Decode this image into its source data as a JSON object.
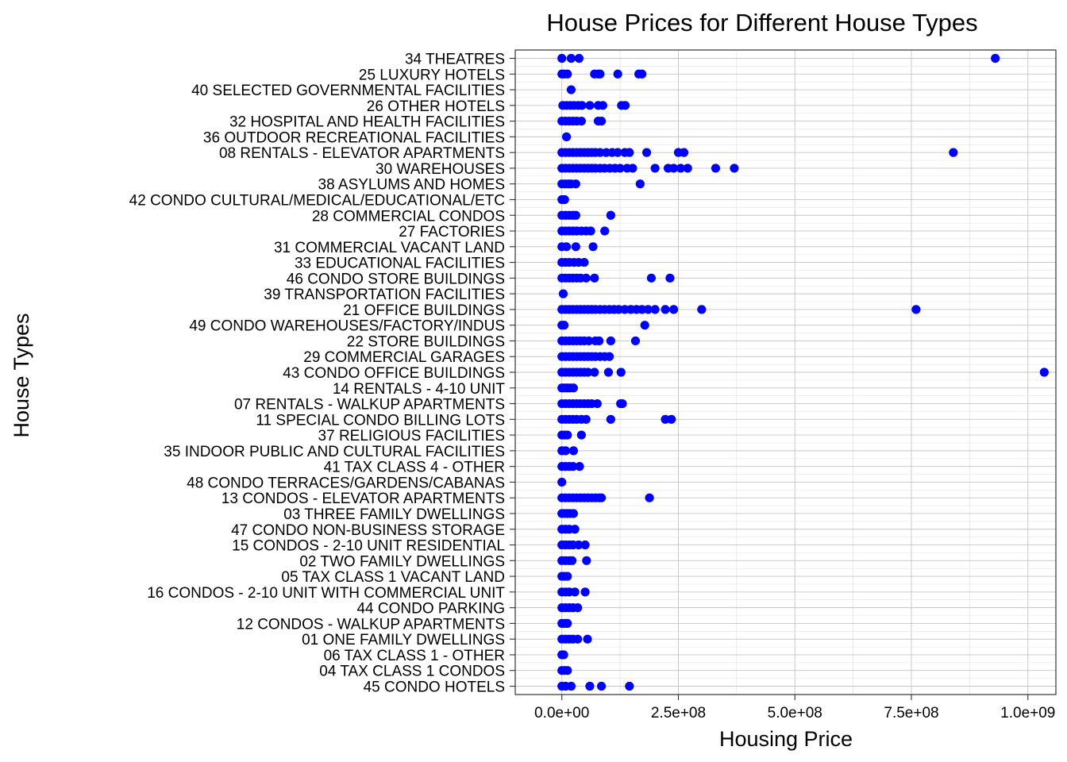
{
  "chart_data": {
    "type": "scatter",
    "title": "House Prices for Different House Types",
    "xlabel": "Housing Price",
    "ylabel": "House Types",
    "xlim": [
      -100000000,
      1060000000
    ],
    "xticks": [
      0,
      250000000,
      500000000,
      750000000,
      1000000000
    ],
    "xtick_labels": [
      "0.0e+00",
      "2.5e+08",
      "5.0e+08",
      "7.5e+08",
      "1.0e+09"
    ],
    "grid": true,
    "point_color": "#0000ff",
    "categories": [
      "34 THEATRES",
      "25 LUXURY HOTELS",
      "40 SELECTED GOVERNMENTAL FACILITIES",
      "26 OTHER HOTELS",
      "32 HOSPITAL AND HEALTH FACILITIES",
      "36 OUTDOOR RECREATIONAL FACILITIES",
      "08 RENTALS - ELEVATOR APARTMENTS",
      "30 WAREHOUSES",
      "38 ASYLUMS AND HOMES",
      "42 CONDO CULTURAL/MEDICAL/EDUCATIONAL/ETC",
      "28 COMMERCIAL CONDOS",
      "27 FACTORIES",
      "31 COMMERCIAL VACANT LAND",
      "33 EDUCATIONAL FACILITIES",
      "46 CONDO STORE BUILDINGS",
      "39 TRANSPORTATION FACILITIES",
      "21 OFFICE BUILDINGS",
      "49 CONDO WAREHOUSES/FACTORY/INDUS",
      "22 STORE BUILDINGS",
      "29 COMMERCIAL GARAGES",
      "43 CONDO OFFICE BUILDINGS",
      "14 RENTALS - 4-10 UNIT",
      "07 RENTALS - WALKUP APARTMENTS",
      "11 SPECIAL CONDO BILLING LOTS",
      "37 RELIGIOUS FACILITIES",
      "35 INDOOR PUBLIC AND CULTURAL FACILITIES",
      "41 TAX CLASS 4 - OTHER",
      "48 CONDO TERRACES/GARDENS/CABANAS",
      "13 CONDOS - ELEVATOR APARTMENTS",
      "03 THREE FAMILY DWELLINGS",
      "47 CONDO NON-BUSINESS STORAGE",
      "15 CONDOS - 2-10 UNIT RESIDENTIAL",
      "02 TWO FAMILY DWELLINGS",
      "05 TAX CLASS 1 VACANT LAND",
      "16 CONDOS - 2-10 UNIT WITH COMMERCIAL UNIT",
      "44 CONDO PARKING",
      "12 CONDOS - WALKUP APARTMENTS",
      "01 ONE FAMILY DWELLINGS",
      "06 TAX CLASS 1 - OTHER",
      "04 TAX CLASS 1 CONDOS",
      "45 CONDO HOTELS"
    ],
    "series": [
      {
        "values": [
          {
            "cat": "34 THEATRES",
            "x": [
              0,
              20000000,
              37000000,
              930000000
            ]
          },
          {
            "cat": "25 LUXURY HOTELS",
            "x": [
              0,
              5000000,
              12000000,
              70000000,
              78000000,
              82000000,
              120000000,
              165000000,
              172000000
            ]
          },
          {
            "cat": "40 SELECTED GOVERNMENTAL FACILITIES",
            "x": [
              20000000
            ]
          },
          {
            "cat": "26 OTHER HOTELS",
            "x": [
              2000000,
              10000000,
              18000000,
              26000000,
              35000000,
              43000000,
              60000000,
              78000000,
              88000000,
              128000000,
              136000000
            ]
          },
          {
            "cat": "32 HOSPITAL AND HEALTH FACILITIES",
            "x": [
              0,
              8000000,
              16000000,
              24000000,
              32000000,
              42000000,
              78000000,
              85000000
            ]
          },
          {
            "cat": "36 OUTDOOR RECREATIONAL FACILITIES",
            "x": [
              10000000
            ]
          },
          {
            "cat": "08 RENTALS - ELEVATOR APARTMENTS",
            "x": [
              0,
              8000000,
              16000000,
              24000000,
              32000000,
              40000000,
              48000000,
              56000000,
              64000000,
              72000000,
              82000000,
              95000000,
              108000000,
              120000000,
              135000000,
              145000000,
              182000000,
              250000000,
              262000000,
              840000000
            ]
          },
          {
            "cat": "30 WAREHOUSES",
            "x": [
              0,
              8000000,
              16000000,
              24000000,
              32000000,
              40000000,
              48000000,
              56000000,
              64000000,
              72000000,
              82000000,
              92000000,
              103000000,
              114000000,
              125000000,
              140000000,
              152000000,
              200000000,
              228000000,
              240000000,
              255000000,
              270000000,
              330000000,
              370000000
            ]
          },
          {
            "cat": "38 ASYLUMS AND HOMES",
            "x": [
              0,
              7000000,
              14000000,
              20000000,
              30000000,
              168000000
            ]
          },
          {
            "cat": "42 CONDO CULTURAL/MEDICAL/EDUCATIONAL/ETC",
            "x": [
              0,
              6000000
            ]
          },
          {
            "cat": "28 COMMERCIAL CONDOS",
            "x": [
              0,
              8000000,
              16000000,
              24000000,
              30000000,
              105000000
            ]
          },
          {
            "cat": "27 FACTORIES",
            "x": [
              0,
              8000000,
              16000000,
              24000000,
              32000000,
              42000000,
              52000000,
              62000000,
              92000000
            ]
          },
          {
            "cat": "31 COMMERCIAL VACANT LAND",
            "x": [
              0,
              10000000,
              30000000,
              67000000
            ]
          },
          {
            "cat": "33 EDUCATIONAL FACILITIES",
            "x": [
              0,
              8000000,
              16000000,
              26000000,
              36000000,
              48000000
            ]
          },
          {
            "cat": "46 CONDO STORE BUILDINGS",
            "x": [
              0,
              8000000,
              16000000,
              24000000,
              32000000,
              40000000,
              52000000,
              70000000,
              192000000,
              232000000
            ]
          },
          {
            "cat": "39 TRANSPORTATION FACILITIES",
            "x": [
              3000000
            ]
          },
          {
            "cat": "21 OFFICE BUILDINGS",
            "x": [
              0,
              8000000,
              16000000,
              24000000,
              32000000,
              40000000,
              48000000,
              56000000,
              64000000,
              72000000,
              82000000,
              92000000,
              102000000,
              112000000,
              122000000,
              135000000,
              148000000,
              160000000,
              172000000,
              185000000,
              200000000,
              222000000,
              240000000,
              300000000,
              760000000
            ]
          },
          {
            "cat": "49 CONDO WAREHOUSES/FACTORY/INDUS",
            "x": [
              0,
              5000000,
              178000000
            ]
          },
          {
            "cat": "22 STORE BUILDINGS",
            "x": [
              0,
              8000000,
              16000000,
              24000000,
              32000000,
              40000000,
              48000000,
              58000000,
              72000000,
              80000000,
              105000000,
              158000000
            ]
          },
          {
            "cat": "29 COMMERCIAL GARAGES",
            "x": [
              0,
              8000000,
              16000000,
              24000000,
              32000000,
              40000000,
              48000000,
              56000000,
              64000000,
              72000000,
              82000000,
              92000000,
              102000000
            ]
          },
          {
            "cat": "43 CONDO OFFICE BUILDINGS",
            "x": [
              0,
              8000000,
              16000000,
              24000000,
              32000000,
              40000000,
              48000000,
              56000000,
              70000000,
              100000000,
              127000000,
              1035000000
            ]
          },
          {
            "cat": "14 RENTALS - 4-10 UNIT",
            "x": [
              0,
              6000000,
              12000000,
              18000000,
              25000000
            ]
          },
          {
            "cat": "07 RENTALS - WALKUP APARTMENTS",
            "x": [
              0,
              8000000,
              16000000,
              24000000,
              32000000,
              40000000,
              48000000,
              56000000,
              64000000,
              76000000,
              126000000,
              130000000
            ]
          },
          {
            "cat": "11 SPECIAL CONDO BILLING LOTS",
            "x": [
              0,
              8000000,
              16000000,
              24000000,
              32000000,
              42000000,
              52000000,
              105000000,
              222000000,
              235000000
            ]
          },
          {
            "cat": "37 RELIGIOUS FACILITIES",
            "x": [
              0,
              6000000,
              12000000,
              42000000
            ]
          },
          {
            "cat": "35 INDOOR PUBLIC AND CULTURAL FACILITIES",
            "x": [
              0,
              8000000,
              25000000
            ]
          },
          {
            "cat": "41 TAX CLASS 4 - OTHER",
            "x": [
              0,
              8000000,
              16000000,
              24000000,
              38000000
            ]
          },
          {
            "cat": "48 CONDO TERRACES/GARDENS/CABANAS",
            "x": [
              0
            ]
          },
          {
            "cat": "13 CONDOS - ELEVATOR APARTMENTS",
            "x": [
              0,
              8000000,
              16000000,
              24000000,
              32000000,
              40000000,
              48000000,
              56000000,
              64000000,
              72000000,
              80000000,
              85000000,
              188000000
            ]
          },
          {
            "cat": "03 THREE FAMILY DWELLINGS",
            "x": [
              0,
              6000000,
              12000000,
              18000000,
              25000000
            ]
          },
          {
            "cat": "47 CONDO NON-BUSINESS STORAGE",
            "x": [
              0,
              8000000,
              16000000,
              28000000
            ]
          },
          {
            "cat": "15 CONDOS - 2-10 UNIT RESIDENTIAL",
            "x": [
              0,
              8000000,
              16000000,
              24000000,
              36000000,
              50000000
            ]
          },
          {
            "cat": "02 TWO FAMILY DWELLINGS",
            "x": [
              0,
              8000000,
              16000000,
              22000000,
              53000000
            ]
          },
          {
            "cat": "05 TAX CLASS 1 VACANT LAND",
            "x": [
              0,
              6000000,
              12000000
            ]
          },
          {
            "cat": "16 CONDOS - 2-10 UNIT WITH COMMERCIAL UNIT",
            "x": [
              0,
              8000000,
              16000000,
              28000000,
              50000000
            ]
          },
          {
            "cat": "44 CONDO PARKING",
            "x": [
              0,
              8000000,
              16000000,
              24000000,
              34000000
            ]
          },
          {
            "cat": "12 CONDOS - WALKUP APARTMENTS",
            "x": [
              0,
              6000000,
              12000000
            ]
          },
          {
            "cat": "01 ONE FAMILY DWELLINGS",
            "x": [
              0,
              8000000,
              16000000,
              24000000,
              34000000,
              55000000
            ]
          },
          {
            "cat": "06 TAX CLASS 1 - OTHER",
            "x": [
              0,
              4000000
            ]
          },
          {
            "cat": "04 TAX CLASS 1 CONDOS",
            "x": [
              0,
              6000000,
              12000000
            ]
          },
          {
            "cat": "45 CONDO HOTELS",
            "x": [
              0,
              8000000,
              20000000,
              60000000,
              85000000,
              145000000
            ]
          }
        ]
      }
    ]
  }
}
